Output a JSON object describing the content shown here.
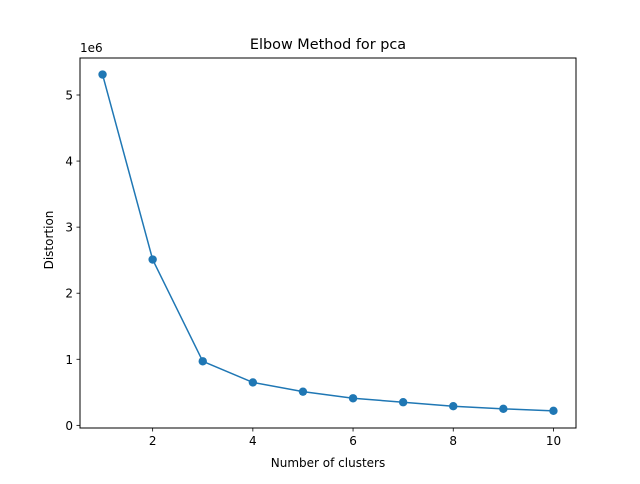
{
  "chart_data": {
    "type": "line",
    "title": "Elbow Method for pca",
    "xlabel": "Number of clusters",
    "ylabel": "Distortion",
    "y_offset_label": "1e6",
    "x": [
      1,
      2,
      3,
      4,
      5,
      6,
      7,
      8,
      9,
      10
    ],
    "series": [
      {
        "values": [
          5310000,
          2510000,
          970000,
          650000,
          510000,
          410000,
          350000,
          290000,
          250000,
          220000
        ],
        "color": "#1f77b4",
        "marker": "circle"
      }
    ],
    "xlim": [
      0.55,
      10.45
    ],
    "ylim": [
      -40000,
      5560000
    ],
    "xticks": [
      2,
      4,
      6,
      8,
      10
    ],
    "xtick_labels": [
      "2",
      "4",
      "6",
      "8",
      "10"
    ],
    "yticks": [
      0,
      1000000,
      2000000,
      3000000,
      4000000,
      5000000
    ],
    "ytick_labels": [
      "0",
      "1",
      "2",
      "3",
      "4",
      "5"
    ],
    "grid": false,
    "legend": false
  }
}
